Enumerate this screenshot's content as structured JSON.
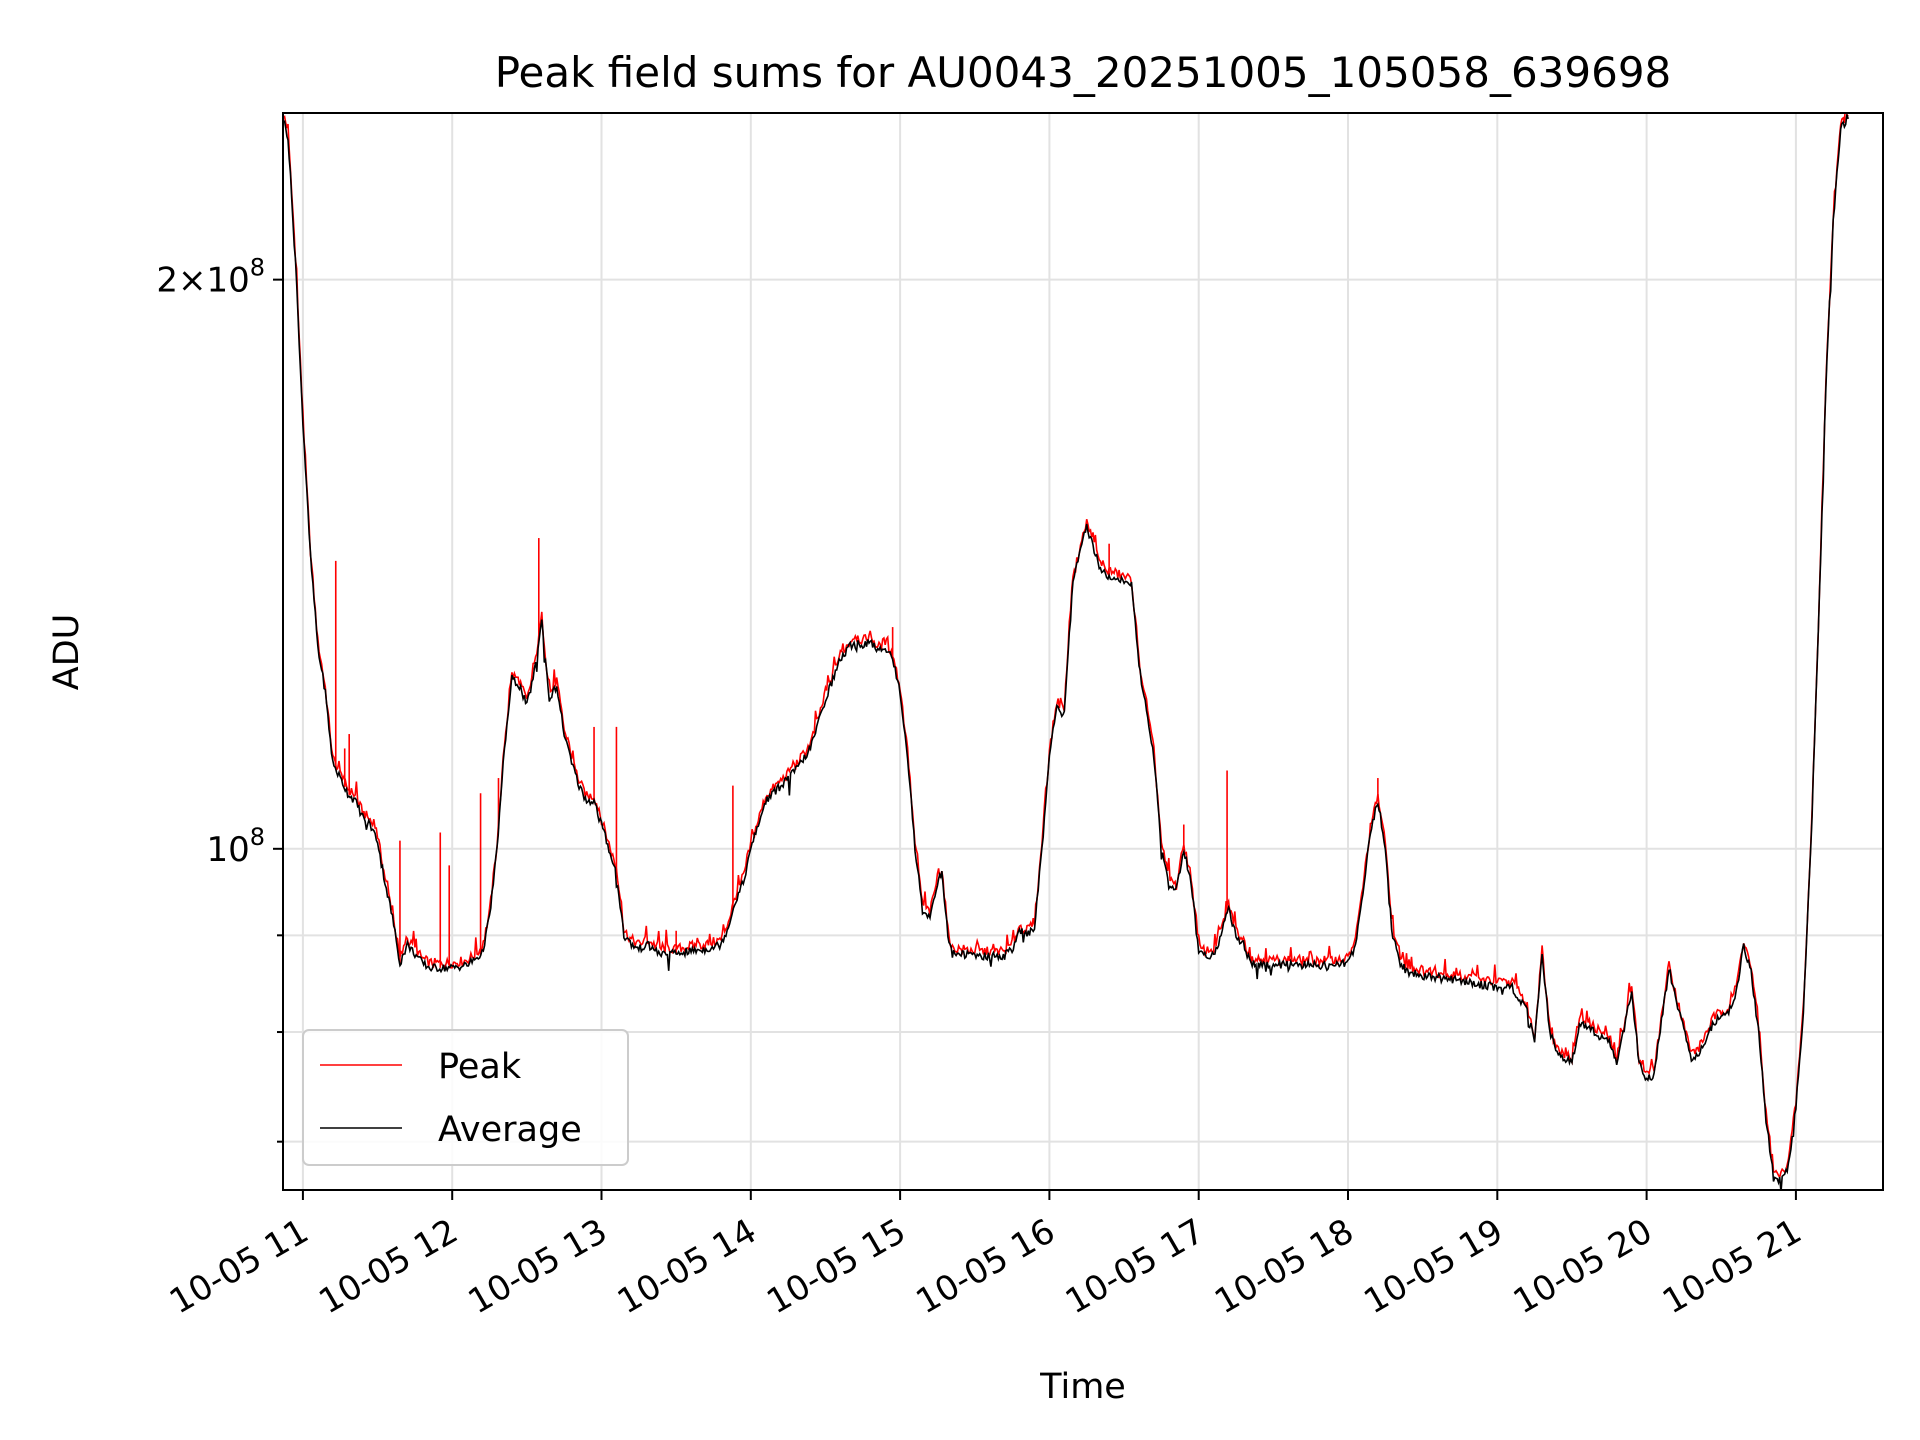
{
  "chart_data": {
    "type": "line",
    "title": "Peak field sums for AU0043_20251005_105058_639698",
    "xlabel": "Time",
    "ylabel": "ADU",
    "yscale": "log",
    "xlim": [
      "10-05 10:52",
      "10-05 21:35"
    ],
    "ylim": [
      66000000,
      245000000
    ],
    "x_ticks": [
      {
        "label": "10-05 11",
        "hour": 11
      },
      {
        "label": "10-05 12",
        "hour": 12
      },
      {
        "label": "10-05 13",
        "hour": 13
      },
      {
        "label": "10-05 14",
        "hour": 14
      },
      {
        "label": "10-05 15",
        "hour": 15
      },
      {
        "label": "10-05 16",
        "hour": 16
      },
      {
        "label": "10-05 17",
        "hour": 17
      },
      {
        "label": "10-05 18",
        "hour": 18
      },
      {
        "label": "10-05 19",
        "hour": 19
      },
      {
        "label": "10-05 20",
        "hour": 20
      },
      {
        "label": "10-05 21",
        "hour": 21
      }
    ],
    "y_ticks": [
      {
        "base": "2×10",
        "exp": "8",
        "value": 200000000
      },
      {
        "base": "10",
        "exp": "8",
        "value": 100000000
      }
    ],
    "y_minor_values": [
      70000000,
      80000000,
      90000000,
      300000000
    ],
    "grid": true,
    "legend_position": "lower left",
    "series": [
      {
        "name": "Peak",
        "color": "#ff0000"
      },
      {
        "name": "Average",
        "color": "#000000"
      }
    ],
    "time_unit": "hours",
    "average_curve": [
      [
        10.87,
        243000000
      ],
      [
        10.9,
        238000000
      ],
      [
        10.95,
        205000000
      ],
      [
        11.0,
        168000000
      ],
      [
        11.05,
        143000000
      ],
      [
        11.1,
        128000000
      ],
      [
        11.15,
        121000000
      ],
      [
        11.2,
        111000000
      ],
      [
        11.25,
        109000000
      ],
      [
        11.3,
        107000000
      ],
      [
        11.35,
        106000000
      ],
      [
        11.4,
        104000000
      ],
      [
        11.45,
        103000000
      ],
      [
        11.5,
        101000000
      ],
      [
        11.55,
        96000000
      ],
      [
        11.6,
        92000000
      ],
      [
        11.65,
        87000000
      ],
      [
        11.7,
        89000000
      ],
      [
        11.75,
        88000000
      ],
      [
        11.8,
        87000000
      ],
      [
        11.85,
        86500000
      ],
      [
        11.9,
        86500000
      ],
      [
        12.0,
        86500000
      ],
      [
        12.1,
        86800000
      ],
      [
        12.2,
        88000000
      ],
      [
        12.25,
        92000000
      ],
      [
        12.3,
        100000000
      ],
      [
        12.35,
        113000000
      ],
      [
        12.4,
        123000000
      ],
      [
        12.45,
        122000000
      ],
      [
        12.5,
        119000000
      ],
      [
        12.55,
        124000000
      ],
      [
        12.6,
        132000000
      ],
      [
        12.65,
        120000000
      ],
      [
        12.7,
        122000000
      ],
      [
        12.75,
        115000000
      ],
      [
        12.8,
        111000000
      ],
      [
        12.85,
        108000000
      ],
      [
        12.9,
        106000000
      ],
      [
        12.95,
        106000000
      ],
      [
        13.0,
        103000000
      ],
      [
        13.05,
        100000000
      ],
      [
        13.1,
        97000000
      ],
      [
        13.15,
        90000000
      ],
      [
        13.2,
        89000000
      ],
      [
        13.25,
        88500000
      ],
      [
        13.3,
        89000000
      ],
      [
        13.4,
        88000000
      ],
      [
        13.5,
        88000000
      ],
      [
        13.6,
        88300000
      ],
      [
        13.7,
        88500000
      ],
      [
        13.8,
        89000000
      ],
      [
        13.85,
        91000000
      ],
      [
        13.9,
        94000000
      ],
      [
        13.95,
        96000000
      ],
      [
        14.0,
        100000000
      ],
      [
        14.1,
        106000000
      ],
      [
        14.2,
        108000000
      ],
      [
        14.3,
        110000000
      ],
      [
        14.4,
        113000000
      ],
      [
        14.5,
        120000000
      ],
      [
        14.6,
        126000000
      ],
      [
        14.7,
        129000000
      ],
      [
        14.75,
        128000000
      ],
      [
        14.8,
        129000000
      ],
      [
        14.85,
        127000000
      ],
      [
        14.9,
        128000000
      ],
      [
        14.95,
        126000000
      ],
      [
        15.0,
        121000000
      ],
      [
        15.05,
        112000000
      ],
      [
        15.1,
        100000000
      ],
      [
        15.15,
        93000000
      ],
      [
        15.2,
        92000000
      ],
      [
        15.25,
        96000000
      ],
      [
        15.28,
        97000000
      ],
      [
        15.32,
        90000000
      ],
      [
        15.35,
        88000000
      ],
      [
        15.4,
        88000000
      ],
      [
        15.5,
        87800000
      ],
      [
        15.6,
        87700000
      ],
      [
        15.7,
        87800000
      ],
      [
        15.75,
        88500000
      ],
      [
        15.8,
        90500000
      ],
      [
        15.85,
        90000000
      ],
      [
        15.9,
        91000000
      ],
      [
        15.95,
        100000000
      ],
      [
        16.0,
        112000000
      ],
      [
        16.05,
        119000000
      ],
      [
        16.1,
        118000000
      ],
      [
        16.15,
        137000000
      ],
      [
        16.2,
        143000000
      ],
      [
        16.25,
        148000000
      ],
      [
        16.3,
        144000000
      ],
      [
        16.35,
        140000000
      ],
      [
        16.45,
        139000000
      ],
      [
        16.55,
        138000000
      ],
      [
        16.6,
        125000000
      ],
      [
        16.7,
        112000000
      ],
      [
        16.75,
        100000000
      ],
      [
        16.8,
        96000000
      ],
      [
        16.85,
        95000000
      ],
      [
        16.9,
        100000000
      ],
      [
        16.95,
        96000000
      ],
      [
        17.0,
        88000000
      ],
      [
        17.05,
        87800000
      ],
      [
        17.1,
        88000000
      ],
      [
        17.15,
        90000000
      ],
      [
        17.2,
        93000000
      ],
      [
        17.25,
        90000000
      ],
      [
        17.3,
        89000000
      ],
      [
        17.35,
        87000000
      ],
      [
        17.5,
        86800000
      ],
      [
        17.7,
        86800000
      ],
      [
        17.9,
        86800000
      ],
      [
        18.0,
        87000000
      ],
      [
        18.05,
        89000000
      ],
      [
        18.1,
        95000000
      ],
      [
        18.15,
        102000000
      ],
      [
        18.2,
        106000000
      ],
      [
        18.25,
        100000000
      ],
      [
        18.3,
        90000000
      ],
      [
        18.35,
        87000000
      ],
      [
        18.4,
        86000000
      ],
      [
        18.6,
        85500000
      ],
      [
        18.8,
        85000000
      ],
      [
        19.0,
        84500000
      ],
      [
        19.1,
        84500000
      ],
      [
        19.2,
        82000000
      ],
      [
        19.25,
        79000000
      ],
      [
        19.3,
        88000000
      ],
      [
        19.35,
        80000000
      ],
      [
        19.4,
        78000000
      ],
      [
        19.5,
        77000000
      ],
      [
        19.55,
        81000000
      ],
      [
        19.6,
        80500000
      ],
      [
        19.65,
        80000000
      ],
      [
        19.7,
        79500000
      ],
      [
        19.75,
        79000000
      ],
      [
        19.8,
        77000000
      ],
      [
        19.9,
        84000000
      ],
      [
        19.95,
        77000000
      ],
      [
        20.0,
        75500000
      ],
      [
        20.05,
        76000000
      ],
      [
        20.1,
        81000000
      ],
      [
        20.15,
        86500000
      ],
      [
        20.2,
        83000000
      ],
      [
        20.3,
        77500000
      ],
      [
        20.35,
        78000000
      ],
      [
        20.45,
        81000000
      ],
      [
        20.55,
        82000000
      ],
      [
        20.6,
        84000000
      ],
      [
        20.65,
        89000000
      ],
      [
        20.7,
        86000000
      ],
      [
        20.75,
        80000000
      ],
      [
        20.8,
        72000000
      ],
      [
        20.85,
        67000000
      ],
      [
        20.9,
        66800000
      ],
      [
        20.95,
        68000000
      ],
      [
        21.0,
        73000000
      ],
      [
        21.05,
        82000000
      ],
      [
        21.1,
        100000000
      ],
      [
        21.15,
        130000000
      ],
      [
        21.2,
        175000000
      ],
      [
        21.25,
        215000000
      ],
      [
        21.3,
        240000000
      ],
      [
        21.35,
        244000000
      ]
    ],
    "peak_spikes": [
      [
        11.22,
        142000000
      ],
      [
        11.28,
        113000000
      ],
      [
        11.31,
        115000000
      ],
      [
        11.65,
        101000000
      ],
      [
        11.92,
        102000000
      ],
      [
        11.98,
        98000000
      ],
      [
        12.19,
        107000000
      ],
      [
        12.31,
        109000000
      ],
      [
        12.58,
        146000000
      ],
      [
        12.95,
        116000000
      ],
      [
        13.1,
        116000000
      ],
      [
        13.5,
        90500000
      ],
      [
        13.88,
        108000000
      ],
      [
        14.95,
        131000000
      ],
      [
        16.4,
        145000000
      ],
      [
        16.9,
        103000000
      ],
      [
        17.19,
        110000000
      ],
      [
        18.2,
        109000000
      ]
    ]
  }
}
